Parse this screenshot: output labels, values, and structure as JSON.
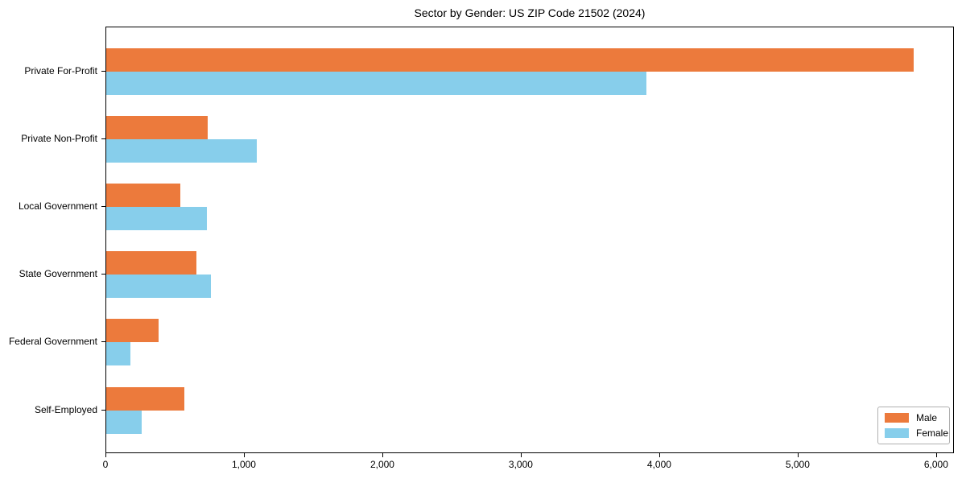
{
  "chart_data": {
    "type": "bar",
    "orientation": "horizontal",
    "title": "Sector by Gender: US ZIP Code 21502 (2024)",
    "categories": [
      "Private For-Profit",
      "Private Non-Profit",
      "Local Government",
      "State Government",
      "Federal Government",
      "Self-Employed"
    ],
    "series": [
      {
        "name": "Male",
        "color": "#EC7A3C",
        "values": [
          5830,
          735,
          535,
          650,
          380,
          565
        ]
      },
      {
        "name": "Female",
        "color": "#87CEEB",
        "values": [
          3900,
          1090,
          725,
          755,
          175,
          255
        ]
      }
    ],
    "xlim": [
      0,
      6117
    ],
    "xticks": [
      0,
      1000,
      2000,
      3000,
      4000,
      5000,
      6000
    ],
    "xtick_labels": [
      "0",
      "1,000",
      "2,000",
      "3,000",
      "4,000",
      "5,000",
      "6,000"
    ],
    "ylabel": "",
    "xlabel": "",
    "grid": false,
    "legend_position": "lower right"
  }
}
